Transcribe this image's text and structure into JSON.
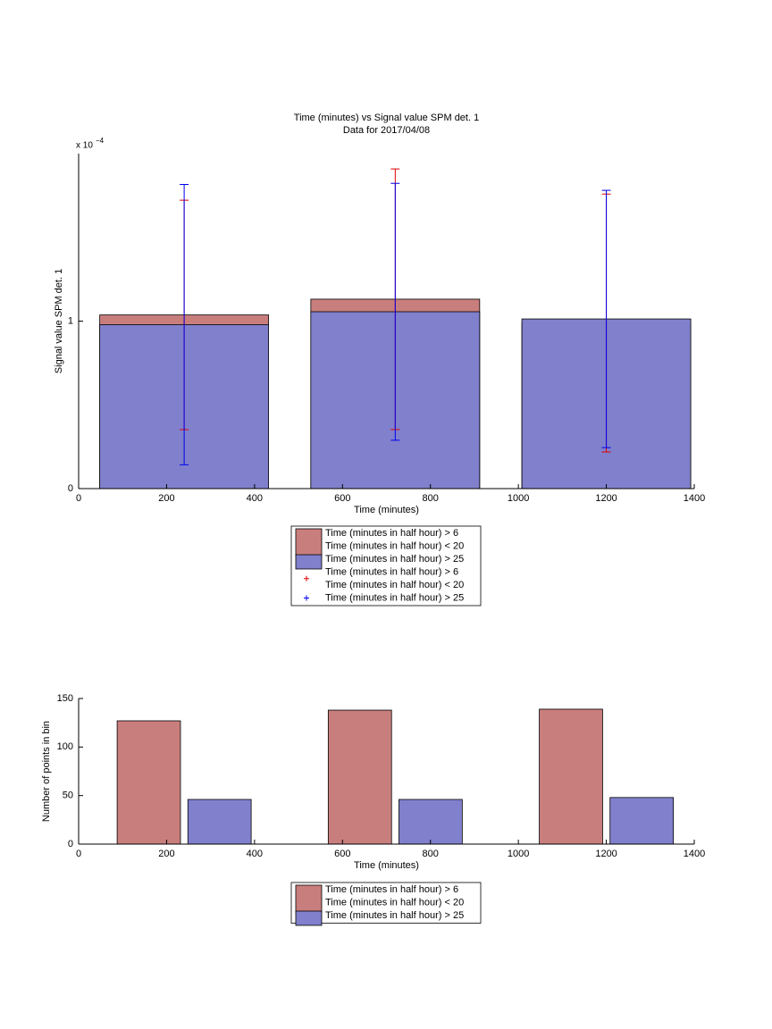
{
  "chart_data": [
    {
      "type": "bar",
      "barmode": "overlay",
      "title": [
        "Time (minutes) vs Signal value SPM det. 1",
        "Data for 2017/04/08"
      ],
      "x_label": "Time (minutes)",
      "y_label": "Signal value SPM det. 1",
      "y_multiplier": "x 10",
      "y_multiplier_exponent": "−4",
      "x": [
        240,
        720,
        1200
      ],
      "xlim": [
        0,
        1400
      ],
      "xticks": [
        0,
        200,
        400,
        600,
        800,
        1000,
        1200,
        1400
      ],
      "ylim": [
        0,
        2
      ],
      "yticks": [
        0,
        1
      ],
      "errorbar_legend": true,
      "series": [
        {
          "name": [
            "Time (minutes in half hour) > 6",
            "Time (minutes in half hour) < 20"
          ],
          "color": "#c97e7e",
          "error_color": "#e00000",
          "values": [
            1.037,
            1.131,
            0.989
          ],
          "errors": [
            0.685,
            0.778,
            0.77
          ]
        },
        {
          "name": [
            "Time (minutes in half hour) > 25"
          ],
          "color": "#8080cc",
          "error_color": "#0000ee",
          "values": [
            0.979,
            1.056,
            1.013
          ],
          "errors": [
            0.837,
            0.767,
            0.768
          ]
        }
      ]
    },
    {
      "type": "bar",
      "barmode": "group",
      "x_label": "Time (minutes)",
      "y_label": "Number of points in bin",
      "x": [
        240,
        720,
        1200
      ],
      "xlim": [
        0,
        1400
      ],
      "xticks": [
        0,
        200,
        400,
        600,
        800,
        1000,
        1200,
        1400
      ],
      "ylim": [
        0,
        150
      ],
      "yticks": [
        0,
        50,
        100,
        150
      ],
      "errorbar_legend": false,
      "series": [
        {
          "name": [
            "Time (minutes in half hour) > 6",
            "Time (minutes in half hour) < 20"
          ],
          "color": "#c97e7e",
          "values": [
            127,
            138,
            139
          ]
        },
        {
          "name": [
            "Time (minutes in half hour) > 25"
          ],
          "color": "#8080cc",
          "values": [
            46,
            46,
            48
          ]
        }
      ]
    }
  ]
}
